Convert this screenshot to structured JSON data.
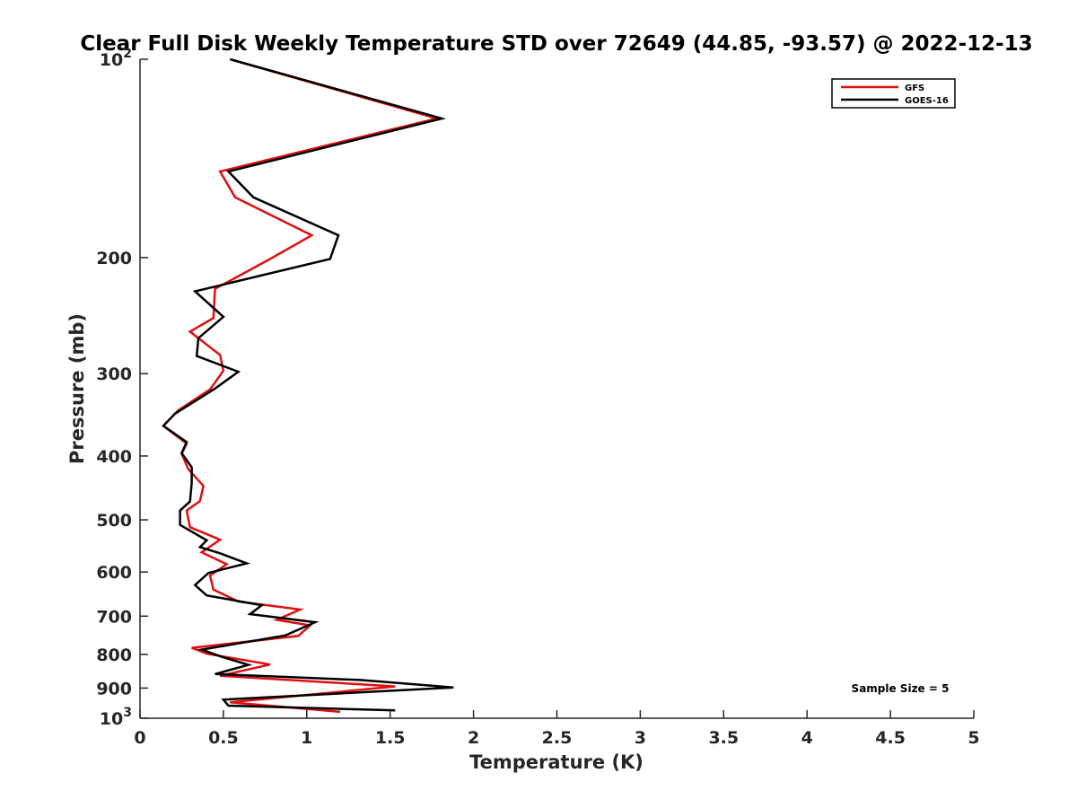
{
  "chart_data": {
    "type": "line",
    "title": "Clear Full Disk Weekly Temperature STD over 72649 (44.85, -93.57) @ 2022-12-13",
    "xlabel": "Temperature (K)",
    "ylabel": "Pressure (mb)",
    "xlim": [
      0,
      5
    ],
    "ylim": [
      100,
      1000
    ],
    "y_scale": "log",
    "y_reversed": true,
    "grid": false,
    "legend_position": "top-right",
    "x_ticks": [
      0,
      0.5,
      1,
      1.5,
      2,
      2.5,
      3,
      3.5,
      4,
      4.5,
      5
    ],
    "x_tick_labels": [
      "0",
      "0.5",
      "1",
      "1.5",
      "2",
      "2.5",
      "3",
      "3.5",
      "4",
      "4.5",
      "5"
    ],
    "y_ticks": [
      100,
      200,
      300,
      400,
      500,
      600,
      700,
      800,
      900,
      1000
    ],
    "y_tick_labels": [
      {
        "base": "10",
        "exp": "2"
      },
      {
        "base": "200",
        "exp": ""
      },
      {
        "base": "300",
        "exp": ""
      },
      {
        "base": "400",
        "exp": ""
      },
      {
        "base": "500",
        "exp": ""
      },
      {
        "base": "600",
        "exp": ""
      },
      {
        "base": "700",
        "exp": ""
      },
      {
        "base": "800",
        "exp": ""
      },
      {
        "base": "900",
        "exp": ""
      },
      {
        "base": "10",
        "exp": "3"
      }
    ],
    "annotation": "Sample Size = 5",
    "series": [
      {
        "name": "GFS",
        "color": "#e01010",
        "points": [
          [
            0.54,
            100
          ],
          [
            1.78,
            123
          ],
          [
            0.48,
            148
          ],
          [
            0.57,
            162
          ],
          [
            1.03,
            185
          ],
          [
            0.78,
            201
          ],
          [
            0.45,
            223
          ],
          [
            0.44,
            247
          ],
          [
            0.3,
            259
          ],
          [
            0.48,
            281
          ],
          [
            0.5,
            297
          ],
          [
            0.42,
            317
          ],
          [
            0.23,
            341
          ],
          [
            0.14,
            360
          ],
          [
            0.28,
            383
          ],
          [
            0.25,
            397
          ],
          [
            0.29,
            419
          ],
          [
            0.38,
            444
          ],
          [
            0.36,
            468
          ],
          [
            0.28,
            484
          ],
          [
            0.3,
            513
          ],
          [
            0.48,
            536
          ],
          [
            0.37,
            560
          ],
          [
            0.52,
            584
          ],
          [
            0.42,
            607
          ],
          [
            0.44,
            638
          ],
          [
            0.59,
            665
          ],
          [
            0.96,
            684
          ],
          [
            0.82,
            709
          ],
          [
            1.02,
            723
          ],
          [
            0.95,
            750
          ],
          [
            0.31,
            782
          ],
          [
            0.4,
            798
          ],
          [
            0.78,
            829
          ],
          [
            0.48,
            862
          ],
          [
            1.53,
            895
          ],
          [
            0.54,
            946
          ],
          [
            1.2,
            978
          ]
        ]
      },
      {
        "name": "GOES-16",
        "color": "#000000",
        "points": [
          [
            0.54,
            100
          ],
          [
            1.81,
            123
          ],
          [
            0.53,
            148
          ],
          [
            0.68,
            162
          ],
          [
            1.19,
            185
          ],
          [
            1.14,
            201
          ],
          [
            0.33,
            225
          ],
          [
            0.5,
            246
          ],
          [
            0.35,
            265
          ],
          [
            0.34,
            282
          ],
          [
            0.59,
            298
          ],
          [
            0.45,
            316
          ],
          [
            0.21,
            345
          ],
          [
            0.14,
            360
          ],
          [
            0.28,
            381
          ],
          [
            0.25,
            396
          ],
          [
            0.31,
            416
          ],
          [
            0.31,
            440
          ],
          [
            0.3,
            469
          ],
          [
            0.24,
            484
          ],
          [
            0.24,
            509
          ],
          [
            0.4,
            537
          ],
          [
            0.36,
            550
          ],
          [
            0.48,
            562
          ],
          [
            0.64,
            582
          ],
          [
            0.41,
            602
          ],
          [
            0.33,
            628
          ],
          [
            0.4,
            651
          ],
          [
            0.73,
            674
          ],
          [
            0.66,
            695
          ],
          [
            1.05,
            715
          ],
          [
            0.87,
            749
          ],
          [
            0.37,
            787
          ],
          [
            0.49,
            807
          ],
          [
            0.65,
            830
          ],
          [
            0.45,
            857
          ],
          [
            1.32,
            875
          ],
          [
            1.88,
            898
          ],
          [
            0.5,
            937
          ],
          [
            0.53,
            957
          ],
          [
            1.53,
            973
          ]
        ]
      }
    ]
  }
}
